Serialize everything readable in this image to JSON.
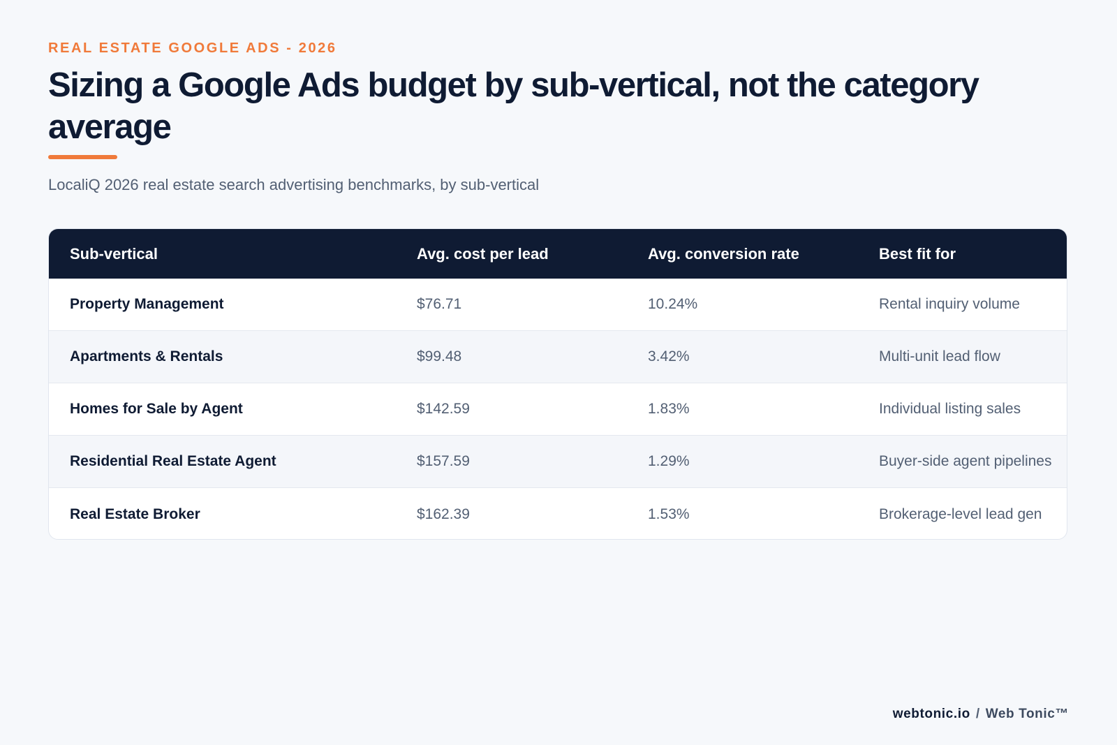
{
  "header": {
    "eyebrow": "REAL ESTATE GOOGLE ADS - 2026",
    "title": "Sizing a Google Ads budget by sub-vertical, not the category average",
    "subtitle": "LocaliQ 2026 real estate search advertising benchmarks, by sub-vertical",
    "accent_color": "#f07a3a"
  },
  "table": {
    "columns": [
      "Sub-vertical",
      "Avg. cost per lead",
      "Avg. conversion rate",
      "Best fit for"
    ],
    "rows": [
      [
        "Property Management",
        "$76.71",
        "10.24%",
        "Rental inquiry volume"
      ],
      [
        "Apartments & Rentals",
        "$99.48",
        "3.42%",
        "Multi-unit lead flow"
      ],
      [
        "Homes for Sale by Agent",
        "$142.59",
        "1.83%",
        "Individual listing sales"
      ],
      [
        "Residential Real Estate Agent",
        "$157.59",
        "1.29%",
        "Buyer-side agent pipelines"
      ],
      [
        "Real Estate Broker",
        "$162.39",
        "1.53%",
        "Brokerage-level lead gen"
      ]
    ],
    "header_color": "#0f1b33"
  },
  "footer": {
    "domain": "webtonic.io",
    "separator": "/",
    "brand": "Web Tonic™"
  }
}
